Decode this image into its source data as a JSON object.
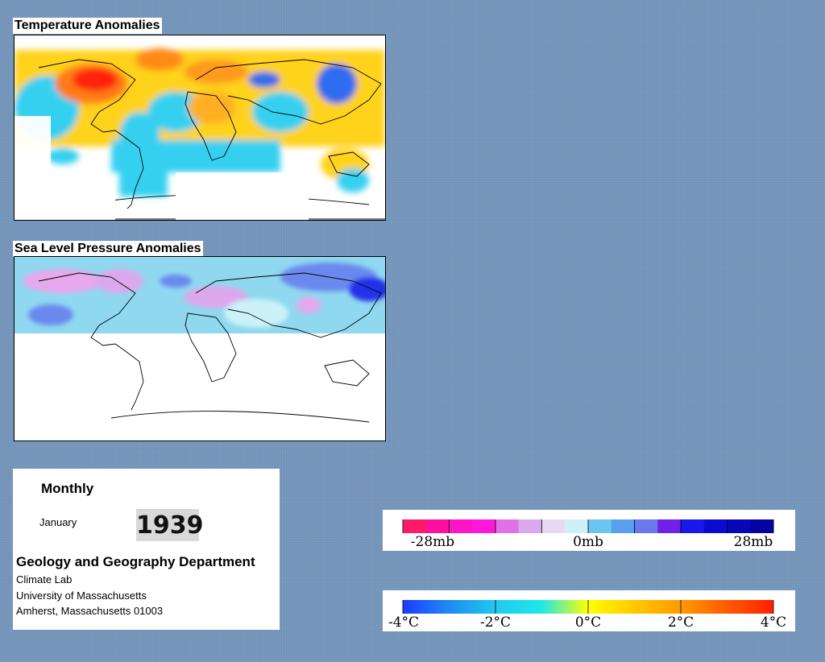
{
  "maps": {
    "temperature": {
      "title": "Temperature Anomalies"
    },
    "pressure": {
      "title": "Sea Level Pressure Anomalies"
    }
  },
  "info": {
    "frequency": "Monthly",
    "month": "January",
    "year": "1939",
    "department": "Geology and Geography Department",
    "lab": "Climate Lab",
    "university": "University of Massachusetts",
    "address": "Amherst, Massachusetts 01003"
  },
  "pressure_legend": {
    "labels": [
      "-28mb",
      "0mb",
      "28mb"
    ],
    "colors": [
      "#ff1a66",
      "#ff0fa0",
      "#ff14c8",
      "#ff18dc",
      "#e070e8",
      "#dca8ec",
      "#e8d8f4",
      "#ccf2f8",
      "#6cc4f0",
      "#5a9ef0",
      "#6a78ee",
      "#7020e8",
      "#1818e8",
      "#0a0ad2",
      "#0808b8",
      "#0404a0"
    ]
  },
  "temperature_legend": {
    "labels": [
      "-4°C",
      "-2°C",
      "0°C",
      "2°C",
      "4°C"
    ],
    "colors": [
      "#1a3cff",
      "#1e8cf0",
      "#22c8f0",
      "#20e8e8",
      "#ffff00",
      "#ffc800",
      "#ff9a00",
      "#ff5a00",
      "#ff2000"
    ]
  }
}
